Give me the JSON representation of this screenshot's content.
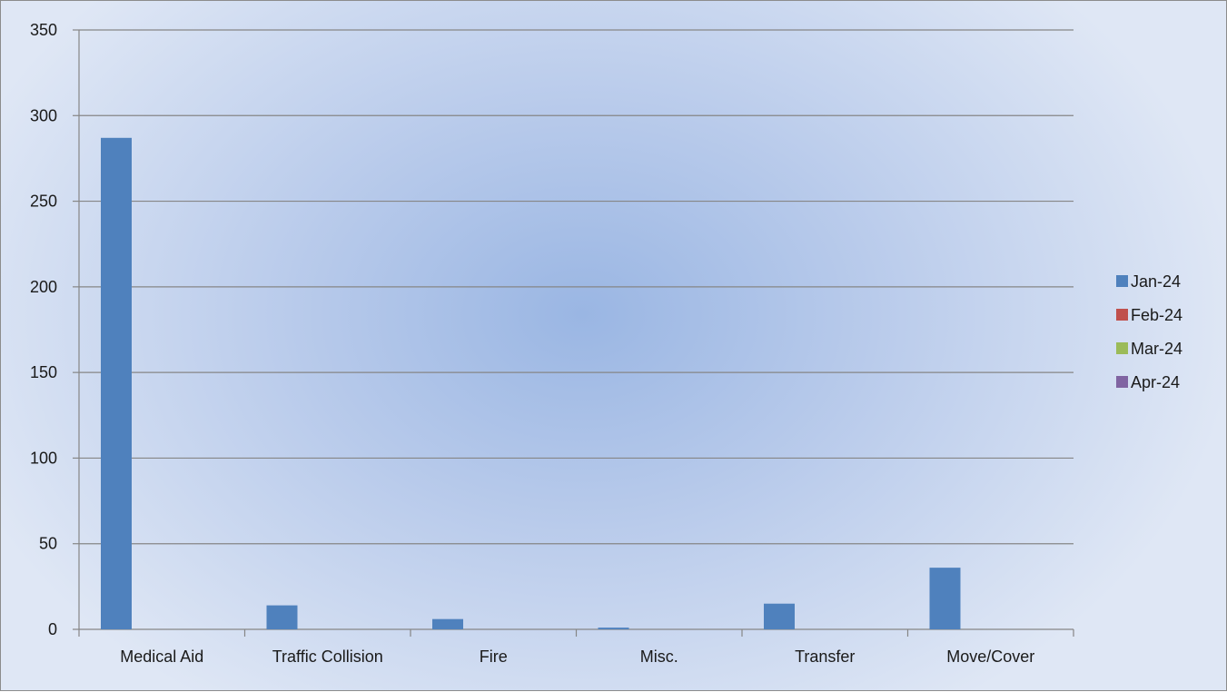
{
  "chart_data": {
    "type": "bar",
    "categories": [
      "Medical Aid",
      "Traffic Collision",
      "Fire",
      "Misc.",
      "Transfer",
      "Move/Cover"
    ],
    "series": [
      {
        "name": "Jan-24",
        "color": "#4f81bd",
        "values": [
          287,
          14,
          6,
          1,
          15,
          36
        ]
      },
      {
        "name": "Feb-24",
        "color": "#c0504d",
        "values": [
          0,
          0,
          0,
          0,
          0,
          0
        ]
      },
      {
        "name": "Mar-24",
        "color": "#9bbb59",
        "values": [
          0,
          0,
          0,
          0,
          0,
          0
        ]
      },
      {
        "name": "Apr-24",
        "color": "#8064a2",
        "values": [
          0,
          0,
          0,
          0,
          0,
          0
        ]
      }
    ],
    "ylim": [
      0,
      350
    ],
    "yticks": [
      "0",
      "50",
      "100",
      "150",
      "200",
      "250",
      "300",
      "350"
    ],
    "grid": true,
    "legend_position": "right"
  }
}
